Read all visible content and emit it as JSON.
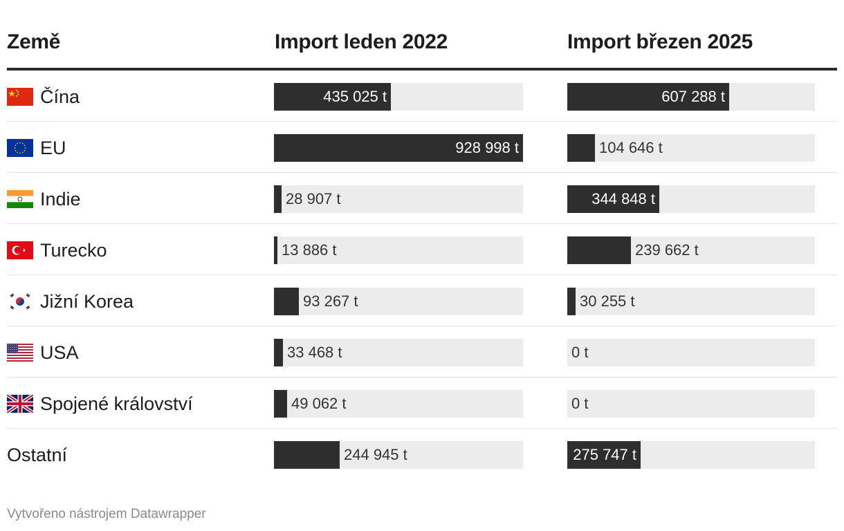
{
  "chart_data": {
    "type": "table",
    "headers": {
      "country": "Země",
      "col1": "Import leden 2022",
      "col2": "Import březen 2025"
    },
    "unit": "t",
    "max_value": 928998,
    "rows": [
      {
        "country": "Čína",
        "flag": "china-flag-icon",
        "v1": 435025,
        "v1_label": "435 025 t",
        "v2": 607288,
        "v2_label": "607 288 t"
      },
      {
        "country": "EU",
        "flag": "eu-flag-icon",
        "v1": 928998,
        "v1_label": "928 998 t",
        "v2": 104646,
        "v2_label": "104 646 t"
      },
      {
        "country": "Indie",
        "flag": "india-flag-icon",
        "v1": 28907,
        "v1_label": "28 907 t",
        "v2": 344848,
        "v2_label": "344 848 t"
      },
      {
        "country": "Turecko",
        "flag": "turkey-flag-icon",
        "v1": 13886,
        "v1_label": "13 886 t",
        "v2": 239662,
        "v2_label": "239 662 t"
      },
      {
        "country": "Jižní Korea",
        "flag": "south-korea-flag-icon",
        "v1": 93267,
        "v1_label": "93 267 t",
        "v2": 30255,
        "v2_label": "30 255 t"
      },
      {
        "country": "USA",
        "flag": "usa-flag-icon",
        "v1": 33468,
        "v1_label": "33 468 t",
        "v2": 0,
        "v2_label": "0 t"
      },
      {
        "country": "Spojené království",
        "flag": "uk-flag-icon",
        "v1": 49062,
        "v1_label": "49 062 t",
        "v2": 0,
        "v2_label": "0 t"
      },
      {
        "country": "Ostatní",
        "flag": "",
        "v1": 244945,
        "v1_label": "244 945 t",
        "v2": 275747,
        "v2_label": "275 747 t"
      }
    ],
    "colors": {
      "bar": "#2e2e2e",
      "track": "#ececec",
      "header_rule": "#2b2b2b"
    }
  },
  "footer": {
    "credit": "Vytvořeno nástrojem Datawrapper"
  }
}
